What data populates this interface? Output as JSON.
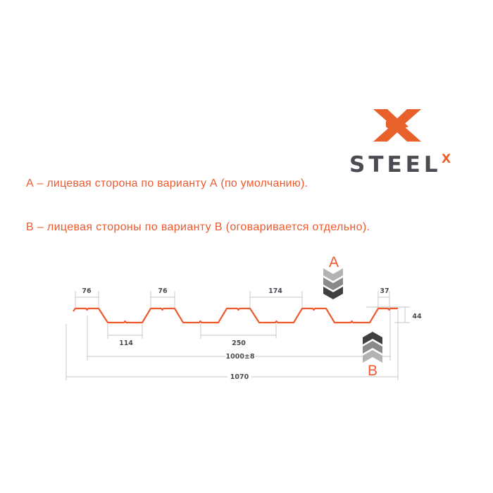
{
  "logo": {
    "wordmark": "STEEL",
    "superscript": "X",
    "brand_color": "#e8602a",
    "text_color": "#4b4b52"
  },
  "notes": [
    "А – лицевая сторона по варианту А (по умолчанию).",
    "В – лицевая стороны по варианту В (оговаривается отдельно)."
  ],
  "profile": {
    "color": "#ec5a2e",
    "dimensions": {
      "top_left": "76",
      "top_second": "76",
      "bottom": "114",
      "pitch": "250",
      "gap": "174",
      "edge": "37",
      "height": "44",
      "useful_width": "1000±8",
      "total_width": "1070"
    },
    "side_a": "A",
    "side_b": "B",
    "arrow_colors": [
      "#b3b3b3",
      "#8a8a8a",
      "#3f3f42"
    ]
  }
}
